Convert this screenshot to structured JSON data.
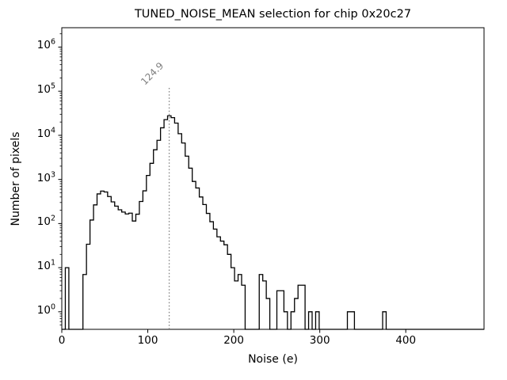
{
  "figure": {
    "background": "#ffffff",
    "line_color": "#000000",
    "annotation_color": "#808080"
  },
  "chart_data": {
    "type": "bar",
    "subtype": "step-histogram",
    "title": "TUNED_NOISE_MEAN selection for chip 0x20c27",
    "xlabel": "Noise (e)",
    "ylabel": "Number of pixels",
    "legend": "none",
    "grid": "off",
    "x_axis": {
      "scale": "linear",
      "lim": [
        0,
        491
      ],
      "ticks": [
        0,
        100,
        200,
        300,
        400
      ]
    },
    "y_axis": {
      "scale": "log",
      "lim": [
        0.4,
        2750000
      ],
      "tick_base": "10",
      "tick_exponents": [
        0,
        1,
        2,
        3,
        4,
        5,
        6
      ]
    },
    "histogram": {
      "bin_start": 0,
      "bin_width": 4.1,
      "counts": [
        0,
        10,
        0,
        0,
        0,
        0,
        7,
        34,
        120,
        265,
        470,
        545,
        520,
        410,
        310,
        248,
        205,
        182,
        165,
        172,
        114,
        163,
        316,
        551,
        1230,
        2320,
        4700,
        7700,
        14800,
        22700,
        27700,
        25100,
        18900,
        10900,
        6700,
        3370,
        1800,
        900,
        640,
        400,
        270,
        170,
        110,
        75,
        50,
        40,
        33,
        20,
        10,
        5,
        7,
        4,
        0,
        0,
        0,
        0,
        7,
        5,
        2,
        0,
        0,
        3,
        3,
        1,
        0,
        1,
        2,
        4,
        4,
        0,
        1,
        0,
        1,
        0,
        0,
        0,
        0,
        0,
        0,
        0,
        0,
        1,
        1,
        0,
        0,
        0,
        0,
        0,
        0,
        0,
        0,
        1,
        0,
        0,
        0,
        0,
        0,
        0,
        0,
        0,
        0,
        0,
        0,
        0,
        0,
        0,
        0,
        0,
        0,
        0,
        0,
        0,
        0,
        0
      ]
    },
    "annotation": {
      "label": "124.9",
      "value": 124.9,
      "line_style": "dotted"
    }
  }
}
